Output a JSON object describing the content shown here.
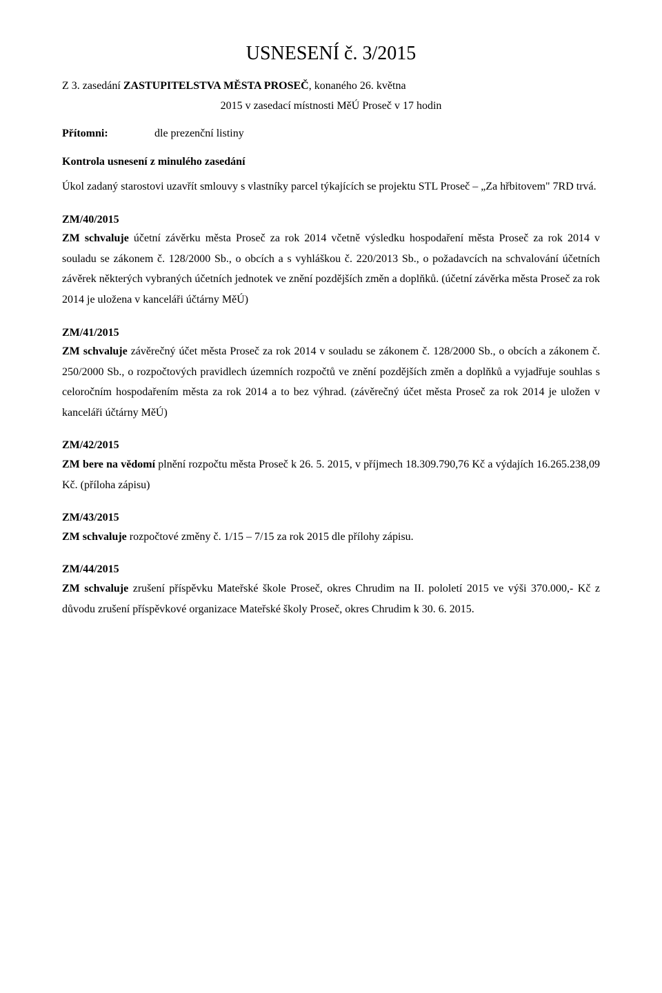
{
  "title": "USNESENÍ č. 3/2015",
  "subtitle_prefix": "Z 3. zasedání ",
  "subtitle_bold": "ZASTUPITELSTVA MĚSTA PROSEČ",
  "subtitle_suffix": ", konaného 26. května",
  "meeting_info": "2015 v zasedací místnosti MěÚ Proseč v 17 hodin",
  "attendance_label": "Přítomni:",
  "attendance_value": "dle prezenční listiny",
  "control_heading": "Kontrola usnesení z minulého zasedání",
  "control_body": "Úkol zadaný starostovi uzavřít smlouvy s vlastníky parcel týkajících se projektu STL Proseč – „Za hřbitovem\" 7RD trvá.",
  "r40": {
    "num": "ZM/40/2015",
    "lead": "ZM schvaluje ",
    "body": "účetní závěrku města Proseč za rok 2014 včetně výsledku hospodaření města Proseč za rok 2014 v souladu se zákonem č. 128/2000 Sb., o obcích a s vyhláškou č. 220/2013 Sb., o požadavcích na schvalování účetních závěrek některých vybraných účetních jednotek ve znění pozdějších změn a doplňků. (účetní závěrka města Proseč za rok 2014 je uložena v kanceláři účtárny MěÚ)"
  },
  "r41": {
    "num": "ZM/41/2015",
    "lead": "ZM schvaluje ",
    "body": "závěrečný účet města Proseč za rok 2014 v souladu se zákonem č. 128/2000 Sb., o obcích a zákonem č. 250/2000 Sb., o rozpočtových pravidlech územních rozpočtů ve znění pozdějších změn a doplňků a vyjadřuje souhlas s celoročním hospodařením města za rok 2014 a to bez výhrad. (závěrečný účet města Proseč za rok 2014 je uložen v kanceláři účtárny MěÚ)"
  },
  "r42": {
    "num": "ZM/42/2015",
    "lead": "ZM bere na vědomí ",
    "body": "plnění rozpočtu města Proseč k 26. 5. 2015, v příjmech 18.309.790,76 Kč a výdajích 16.265.238,09 Kč. (příloha zápisu)"
  },
  "r43": {
    "num": "ZM/43/2015",
    "lead": "ZM schvaluje ",
    "body": "rozpočtové změny č. 1/15 – 7/15 za rok 2015 dle přílohy zápisu."
  },
  "r44": {
    "num": "ZM/44/2015",
    "lead": "ZM schvaluje ",
    "body": "zrušení příspěvku Mateřské škole Proseč, okres Chrudim na II. pololetí 2015 ve výši 370.000,- Kč z důvodu zrušení příspěvkové organizace Mateřské školy Proseč, okres Chrudim k 30. 6. 2015."
  }
}
